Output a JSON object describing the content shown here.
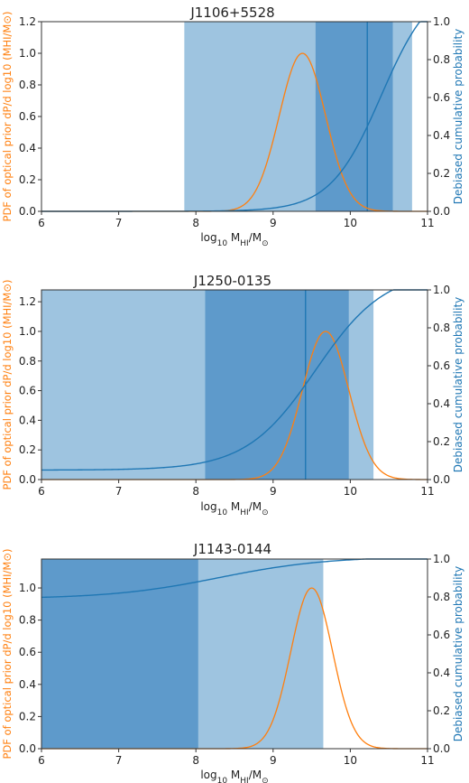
{
  "chart_data": [
    {
      "type": "line",
      "title": "J1106+5528",
      "xlabel_main": "log",
      "xlabel_sub": "10",
      "xlabel_rest": " M",
      "xlabel_rest_sub": "HI",
      "xlabel_tail": "/M",
      "xlabel_tail_sub": "⊙",
      "ylabel_left": "PDF of optical prior dP/d log10 (MHI/M⊙)",
      "ylabel_right": "Debiased cumulative probability",
      "xlim": [
        6,
        11
      ],
      "ylim_left": [
        0,
        1.2
      ],
      "ylim_right": [
        0,
        1.0
      ],
      "xticks": [
        "6",
        "7",
        "8",
        "9",
        "10",
        "11"
      ],
      "yticks_left": [
        "0.0",
        "0.2",
        "0.4",
        "0.6",
        "0.8",
        "1.0",
        "1.2"
      ],
      "yticks_right": [
        "0.0",
        "0.2",
        "0.4",
        "0.6",
        "0.8",
        "1.0"
      ],
      "bands": [
        {
          "x0": 7.85,
          "x1": 10.8,
          "color": "#9ec4e0"
        },
        {
          "x0": 9.55,
          "x1": 10.55,
          "color": "#5e9acb"
        }
      ],
      "vline": 10.22,
      "prior_pdf": {
        "mu": 9.38,
        "sigma": 0.3,
        "peak": 1.0
      },
      "cdf": {
        "mu": 10.4,
        "s": 0.33,
        "floor": 0.0,
        "cap": 10.9
      },
      "colors": {
        "prior": "#ff7f0e",
        "cdf": "#1f77b4",
        "left_axis": "#ff7f0e",
        "right_axis": "#1f77b4"
      }
    },
    {
      "type": "line",
      "title": "J1250-0135",
      "xlabel_main": "log",
      "xlabel_sub": "10",
      "xlabel_rest": " M",
      "xlabel_rest_sub": "HI",
      "xlabel_tail": "/M",
      "xlabel_tail_sub": "⊙",
      "ylabel_left": "PDF of optical prior dP/d log10 (MHI/M⊙)",
      "ylabel_right": "Debiased cumulative probability",
      "xlim": [
        6,
        11
      ],
      "ylim_left": [
        0,
        1.28
      ],
      "ylim_right": [
        0,
        1.0
      ],
      "xticks": [
        "6",
        "7",
        "8",
        "9",
        "10",
        "11"
      ],
      "yticks_left": [
        "0.0",
        "0.2",
        "0.4",
        "0.6",
        "0.8",
        "1.0",
        "1.2"
      ],
      "yticks_right": [
        "0.0",
        "0.2",
        "0.4",
        "0.6",
        "0.8",
        "1.0"
      ],
      "bands": [
        {
          "x0": 6.0,
          "x1": 10.3,
          "color": "#9ec4e0"
        },
        {
          "x0": 8.12,
          "x1": 9.98,
          "color": "#5e9acb"
        }
      ],
      "vline": 9.42,
      "prior_pdf": {
        "mu": 9.68,
        "sigma": 0.3,
        "peak": 1.0
      },
      "cdf": {
        "mu": 9.55,
        "s": 0.45,
        "floor": 0.05,
        "cap": 10.55
      },
      "colors": {
        "prior": "#ff7f0e",
        "cdf": "#1f77b4",
        "left_axis": "#ff7f0e",
        "right_axis": "#1f77b4"
      }
    },
    {
      "type": "line",
      "title": "J1143-0144",
      "xlabel_main": "log",
      "xlabel_sub": "10",
      "xlabel_rest": " M",
      "xlabel_rest_sub": "HI",
      "xlabel_tail": "/M",
      "xlabel_tail_sub": "⊙",
      "ylabel_left": "PDF of optical prior dP/d log10 (MHI/M⊙)",
      "ylabel_right": "Debiased cumulative probability",
      "xlim": [
        6,
        11
      ],
      "ylim_left": [
        0,
        1.18
      ],
      "ylim_right": [
        0,
        1.0
      ],
      "xticks": [
        "6",
        "7",
        "8",
        "9",
        "10",
        "11"
      ],
      "yticks_left": [
        "0.0",
        "0.2",
        "0.4",
        "0.6",
        "0.8",
        "1.0"
      ],
      "yticks_right": [
        "0.0",
        "0.2",
        "0.4",
        "0.6",
        "0.8",
        "1.0"
      ],
      "bands": [
        {
          "x0": 6.0,
          "x1": 9.65,
          "color": "#9ec4e0"
        },
        {
          "x0": 6.0,
          "x1": 8.03,
          "color": "#5e9acb"
        }
      ],
      "vline": null,
      "prior_pdf": {
        "mu": 9.5,
        "sigma": 0.27,
        "peak": 1.0
      },
      "cdf": {
        "mu": 8.3,
        "s": 0.7,
        "floor": 0.79,
        "cap": 10.2
      },
      "colors": {
        "prior": "#ff7f0e",
        "cdf": "#1f77b4",
        "left_axis": "#ff7f0e",
        "right_axis": "#1f77b4"
      }
    }
  ]
}
